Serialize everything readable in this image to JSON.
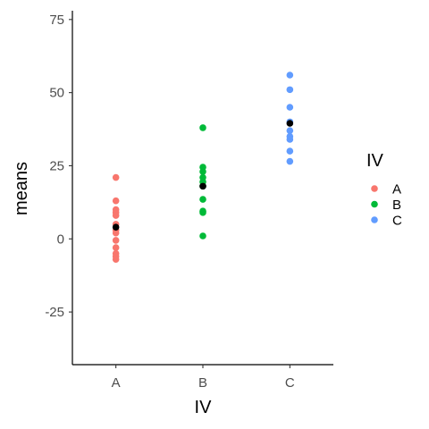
{
  "chart_data": {
    "type": "scatter",
    "title": "",
    "xlabel": "IV",
    "ylabel": "means",
    "categories": [
      "A",
      "B",
      "C"
    ],
    "ylim": [
      -43,
      78
    ],
    "yticks": [
      75,
      50,
      25,
      0,
      -25
    ],
    "grid": false,
    "legend": {
      "title": "IV",
      "placement": "right",
      "entries": [
        "A",
        "B",
        "C"
      ]
    },
    "colors": {
      "A": "#f8766d",
      "B": "#00ba38",
      "C": "#619cff",
      "mean": "#000000"
    },
    "series": [
      {
        "name": "A",
        "x": "A",
        "values": [
          21,
          13,
          10,
          9,
          8,
          5,
          3,
          2,
          -0.5,
          -3,
          -5,
          -6,
          -7
        ]
      },
      {
        "name": "B",
        "x": "B",
        "values": [
          38,
          24.5,
          23,
          21,
          19.5,
          18,
          13.5,
          9.5,
          9,
          1
        ]
      },
      {
        "name": "C",
        "x": "C",
        "values": [
          56,
          51,
          45,
          40,
          37,
          35,
          34,
          30,
          26.5
        ]
      }
    ],
    "means": [
      {
        "x": "A",
        "value": 4
      },
      {
        "x": "B",
        "value": 18
      },
      {
        "x": "C",
        "value": 39.5
      }
    ]
  }
}
